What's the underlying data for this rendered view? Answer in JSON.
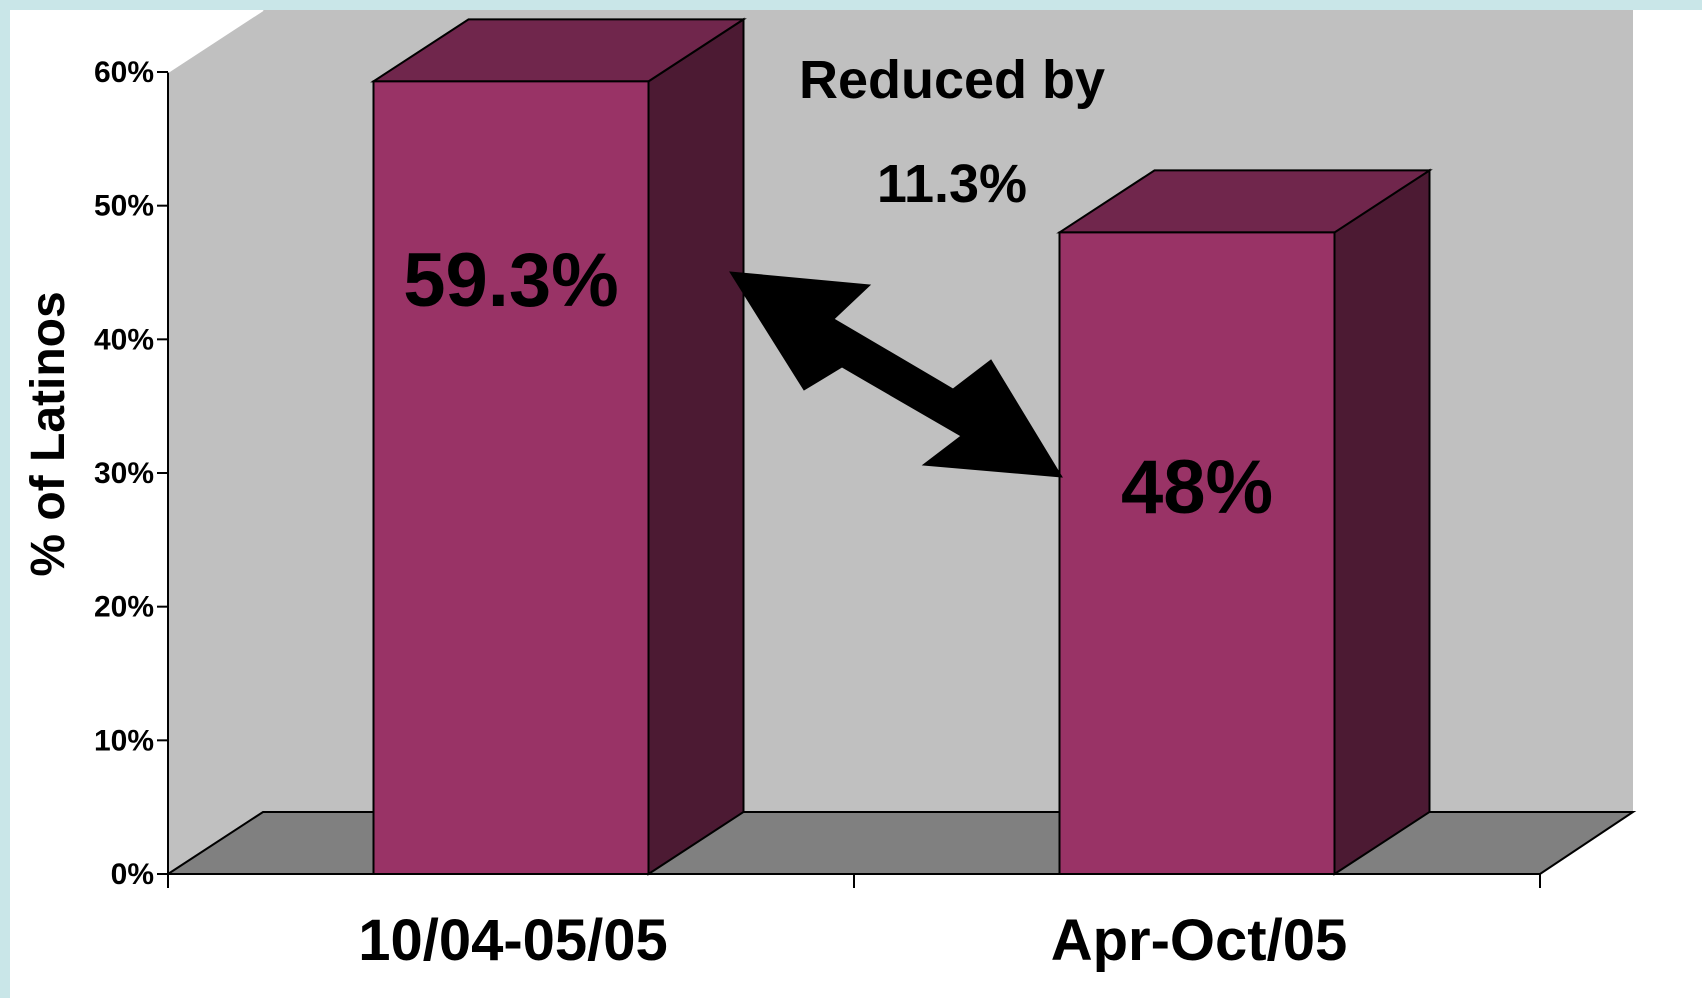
{
  "chart_data": {
    "type": "bar",
    "style": "3d-column",
    "categories": [
      "10/04-05/05",
      "Apr-Oct/05"
    ],
    "values": [
      59.3,
      48
    ],
    "data_labels": [
      "59.3%",
      "48%"
    ],
    "ylabel": "% of Latinos",
    "ylim": [
      0,
      60
    ],
    "yticks": [
      0,
      10,
      20,
      30,
      40,
      50,
      60
    ],
    "ytick_labels": [
      "0%",
      "10%",
      "20%",
      "30%",
      "40%",
      "50%",
      "60%"
    ],
    "grid": false,
    "legend": "none",
    "annotation": {
      "lines": [
        "Reduced by",
        "11.3%"
      ],
      "arrow": "double-headed"
    },
    "colors": {
      "bar_front": "#993366",
      "bar_top": "#70264c",
      "bar_side": "#4c1a33",
      "wall": "#c0c0c0",
      "floor": "#808080",
      "arrow": "#000000",
      "frame": "#c9e6e8"
    }
  }
}
